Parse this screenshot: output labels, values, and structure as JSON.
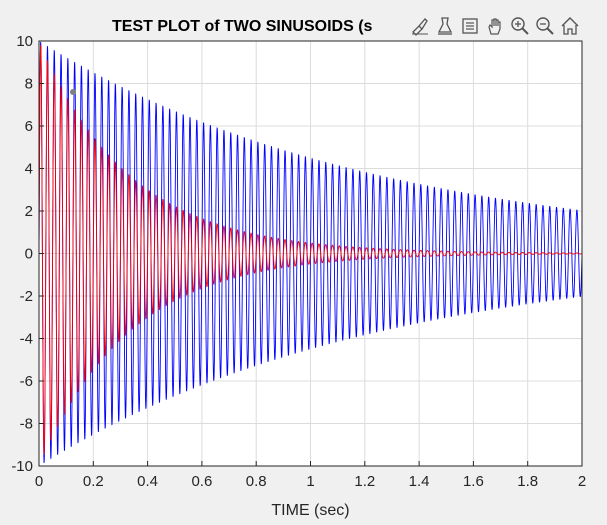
{
  "chart_data": {
    "type": "line",
    "title": "TEST PLOT of TWO SINUSOIDS (s",
    "xlabel": "TIME (sec)",
    "ylabel": "",
    "xlim": [
      0,
      2
    ],
    "ylim": [
      -10,
      10
    ],
    "xticks": [
      "0",
      "0.2",
      "0.4",
      "0.6",
      "0.8",
      "1",
      "1.2",
      "1.4",
      "1.6",
      "1.8",
      "2"
    ],
    "yticks": [
      "10",
      "8",
      "6",
      "4",
      "2",
      "0",
      "-2",
      "-4",
      "-6",
      "-8",
      "-10"
    ],
    "grid": true,
    "series": [
      {
        "color": "#0000ff",
        "amplitude": 10,
        "decay_rate": 0.8,
        "frequency_hz": 40,
        "phase": "sin"
      },
      {
        "color": "#ff0000",
        "amplitude": 10,
        "decay_rate": 3.0,
        "frequency_hz": 40,
        "phase": "sin"
      }
    ],
    "marker": {
      "x": 0.125,
      "y": 7.6,
      "color": "#808080"
    }
  },
  "toolbar": {
    "icons": [
      "brush-icon",
      "data-cursor-icon",
      "legend-icon",
      "pan-icon",
      "zoom-in-icon",
      "zoom-out-icon",
      "home-icon"
    ]
  }
}
